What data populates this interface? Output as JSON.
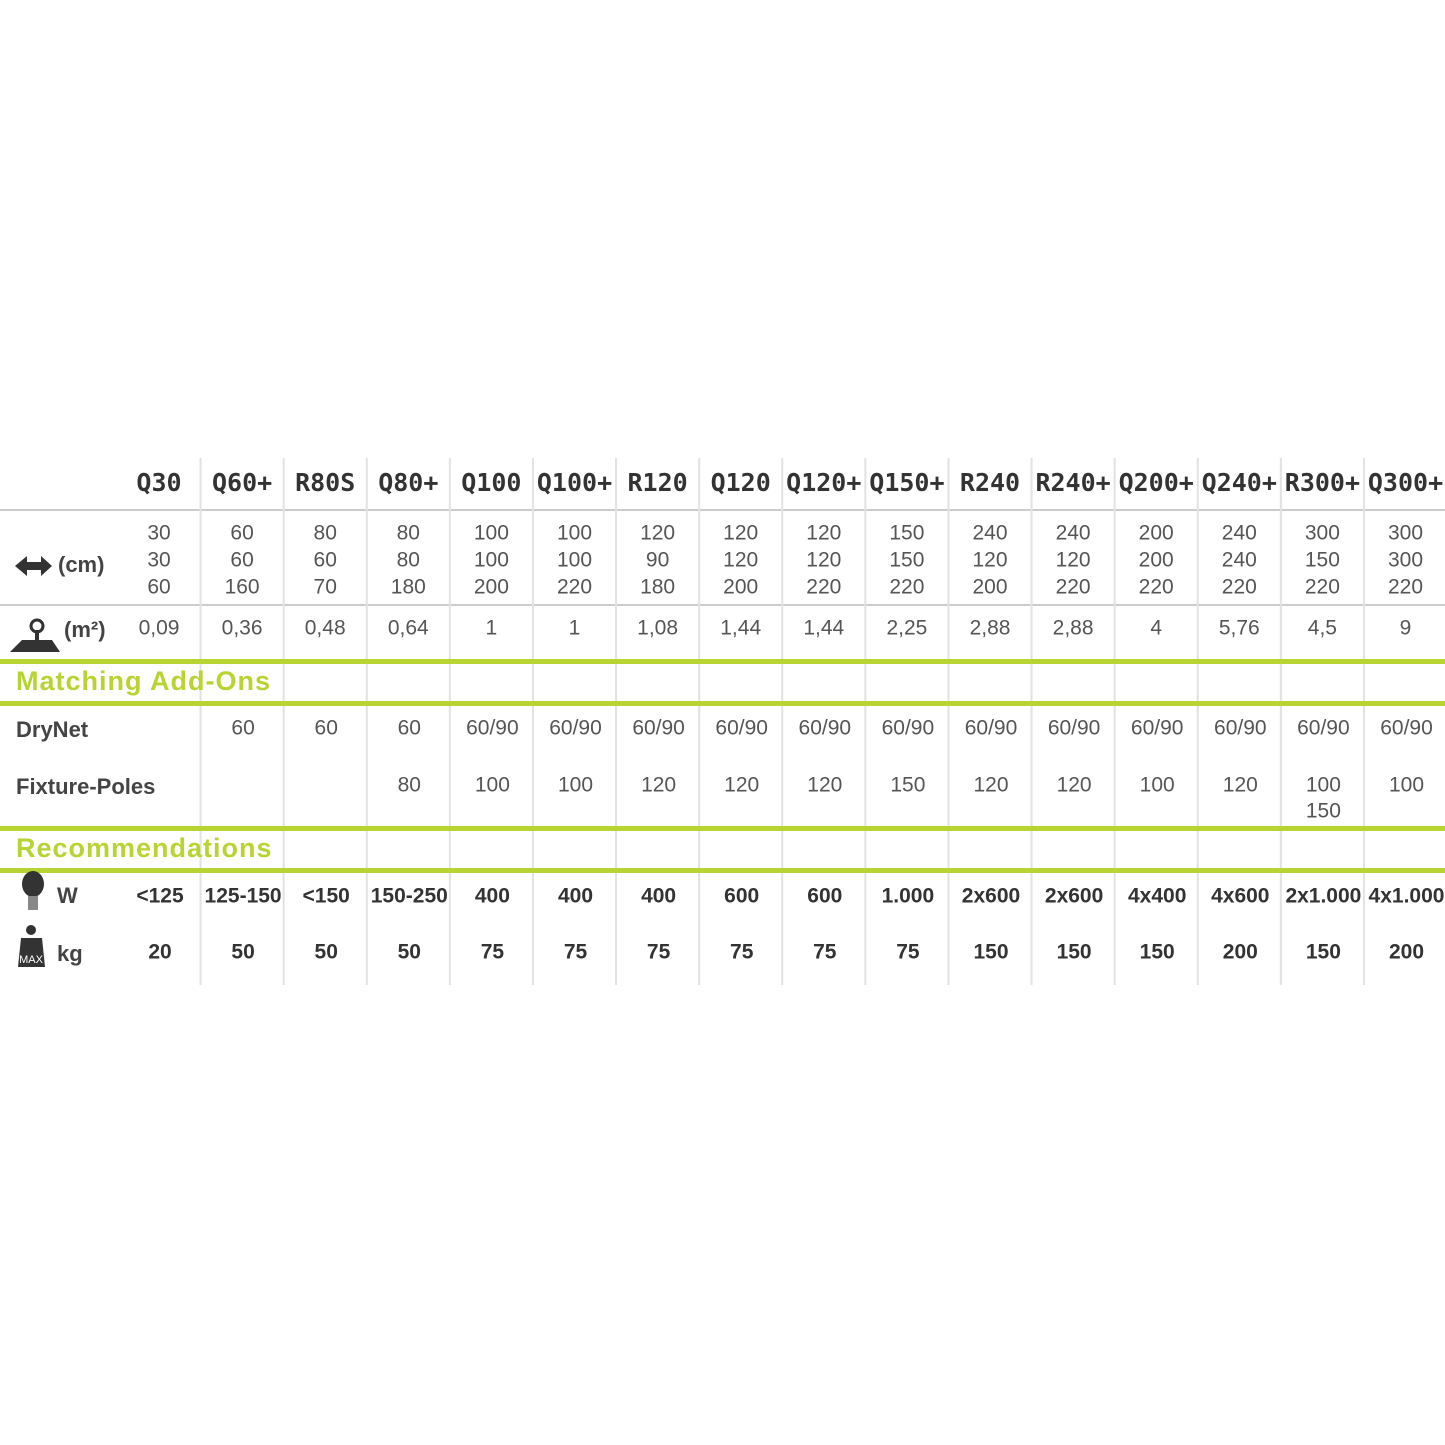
{
  "models": [
    "Q30",
    "Q60+",
    "R80S",
    "Q80+",
    "Q100",
    "Q100+",
    "R120",
    "Q120",
    "Q120+",
    "Q150+",
    "R240",
    "R240+",
    "Q200+",
    "Q240+",
    "R300+",
    "Q300+"
  ],
  "dimensions": {
    "label": "(cm)",
    "values": [
      [
        "30",
        "30",
        "60"
      ],
      [
        "60",
        "60",
        "160"
      ],
      [
        "80",
        "60",
        "70"
      ],
      [
        "80",
        "80",
        "180"
      ],
      [
        "100",
        "100",
        "200"
      ],
      [
        "100",
        "100",
        "220"
      ],
      [
        "120",
        "90",
        "180"
      ],
      [
        "120",
        "120",
        "200"
      ],
      [
        "120",
        "120",
        "220"
      ],
      [
        "150",
        "150",
        "220"
      ],
      [
        "240",
        "120",
        "200"
      ],
      [
        "240",
        "120",
        "220"
      ],
      [
        "200",
        "200",
        "220"
      ],
      [
        "240",
        "240",
        "220"
      ],
      [
        "300",
        "150",
        "220"
      ],
      [
        "300",
        "300",
        "220"
      ]
    ]
  },
  "area": {
    "label": "(m²)",
    "values": [
      "0,09",
      "0,36",
      "0,48",
      "0,64",
      "1",
      "1",
      "1,08",
      "1,44",
      "1,44",
      "2,25",
      "2,88",
      "2,88",
      "4",
      "5,76",
      "4,5",
      "9"
    ]
  },
  "addons": {
    "title": "Matching Add-Ons",
    "drynet": {
      "label": "DryNet",
      "values": [
        null,
        "60",
        "60",
        "60",
        "60/90",
        "60/90",
        "60/90",
        "60/90",
        "60/90",
        "60/90",
        "60/90",
        "60/90",
        "60/90",
        "60/90",
        "60/90",
        "60/90"
      ]
    },
    "fixture_poles": {
      "label": "Fixture-Poles",
      "values": [
        null,
        null,
        null,
        "80",
        "100",
        "100",
        "120",
        "120",
        "120",
        "150",
        "120",
        "120",
        "100",
        "120",
        [
          "100",
          "150"
        ],
        "100"
      ]
    }
  },
  "recommendations": {
    "title": "Recommendations",
    "watts": {
      "label": "W",
      "values": [
        "<125",
        "125-150",
        "<150",
        "150-250",
        "400",
        "400",
        "400",
        "600",
        "600",
        "1.000",
        "2x600",
        "2x600",
        "4x400",
        "4x600",
        "2x1.000",
        "4x1.000"
      ]
    },
    "weight": {
      "label": "kg",
      "icon_text": "MAX",
      "values": [
        "20",
        "50",
        "50",
        "50",
        "75",
        "75",
        "75",
        "75",
        "75",
        "75",
        "150",
        "150",
        "150",
        "200",
        "150",
        "200"
      ]
    }
  }
}
